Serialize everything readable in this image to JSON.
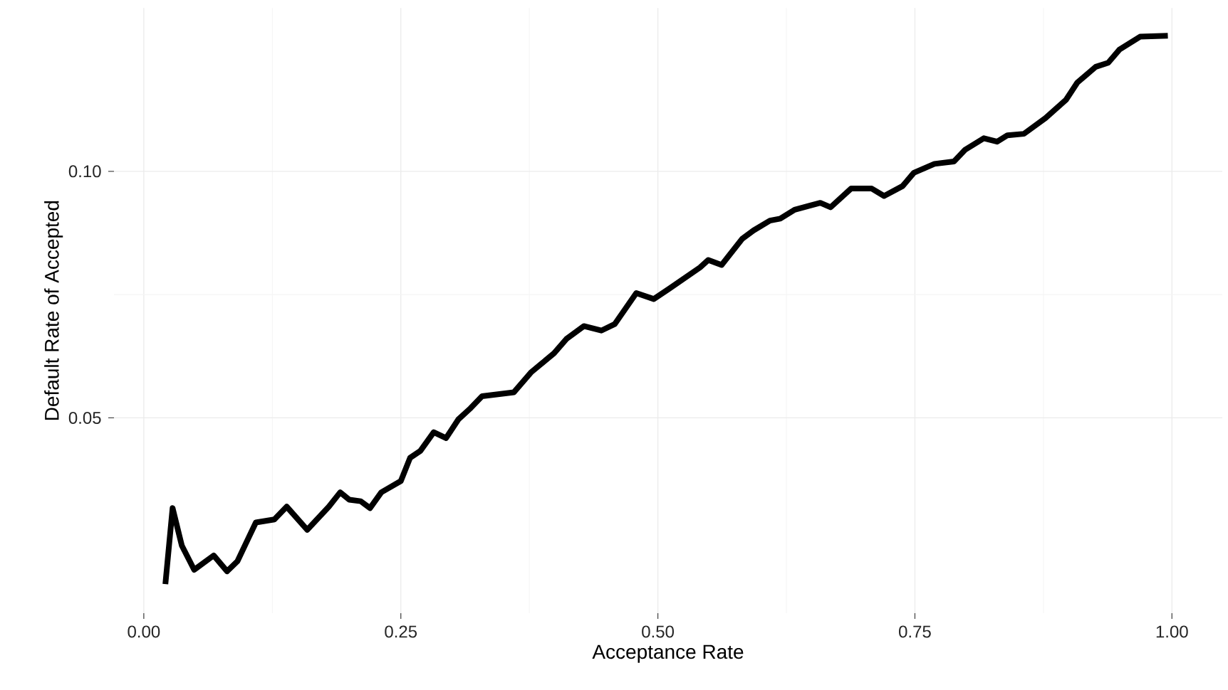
{
  "chart_data": {
    "type": "line",
    "xlabel": "Acceptance Rate",
    "ylabel": "Default Rate of Accepted",
    "x": [
      0.021,
      0.028,
      0.037,
      0.049,
      0.068,
      0.081,
      0.091,
      0.109,
      0.127,
      0.139,
      0.159,
      0.18,
      0.191,
      0.2,
      0.211,
      0.22,
      0.231,
      0.25,
      0.259,
      0.269,
      0.282,
      0.294,
      0.306,
      0.318,
      0.329,
      0.36,
      0.377,
      0.399,
      0.411,
      0.428,
      0.445,
      0.458,
      0.479,
      0.496,
      0.511,
      0.541,
      0.549,
      0.562,
      0.582,
      0.593,
      0.609,
      0.619,
      0.633,
      0.647,
      0.658,
      0.668,
      0.688,
      0.708,
      0.72,
      0.738,
      0.749,
      0.769,
      0.788,
      0.799,
      0.817,
      0.83,
      0.84,
      0.856,
      0.877,
      0.897,
      0.908,
      0.926,
      0.938,
      0.949,
      0.969,
      0.996
    ],
    "series": [
      {
        "color": "#000000",
        "values": [
          0.0163,
          0.0317,
          0.0241,
          0.0192,
          0.0221,
          0.0189,
          0.0209,
          0.0288,
          0.0294,
          0.032,
          0.0273,
          0.032,
          0.0349,
          0.0334,
          0.0331,
          0.0317,
          0.0349,
          0.0372,
          0.0419,
          0.0433,
          0.0471,
          0.0459,
          0.0497,
          0.052,
          0.0544,
          0.0552,
          0.0593,
          0.0631,
          0.066,
          0.0686,
          0.0677,
          0.069,
          0.0753,
          0.0741,
          0.0762,
          0.0805,
          0.082,
          0.081,
          0.0863,
          0.088,
          0.09,
          0.0904,
          0.0922,
          0.093,
          0.0936,
          0.0927,
          0.0965,
          0.0965,
          0.095,
          0.097,
          0.0997,
          0.1015,
          0.102,
          0.1044,
          0.1067,
          0.106,
          0.1073,
          0.1076,
          0.1108,
          0.1145,
          0.118,
          0.1212,
          0.122,
          0.1247,
          0.1273,
          0.1275
        ]
      }
    ],
    "xlim": [
      -0.029,
      1.049
    ],
    "ylim": [
      0.0104,
      0.1331
    ],
    "xticks": [
      {
        "value": 0,
        "label": "0.00"
      },
      {
        "value": 0.25,
        "label": "0.25"
      },
      {
        "value": 0.5,
        "label": "0.50"
      },
      {
        "value": 0.75,
        "label": "0.75"
      },
      {
        "value": 1,
        "label": "1.00"
      }
    ],
    "yticks": [
      {
        "value": 0.05,
        "label": "0.05"
      },
      {
        "value": 0.1,
        "label": "0.10"
      }
    ],
    "grid": true,
    "marker": "none",
    "line_style": "solid"
  }
}
